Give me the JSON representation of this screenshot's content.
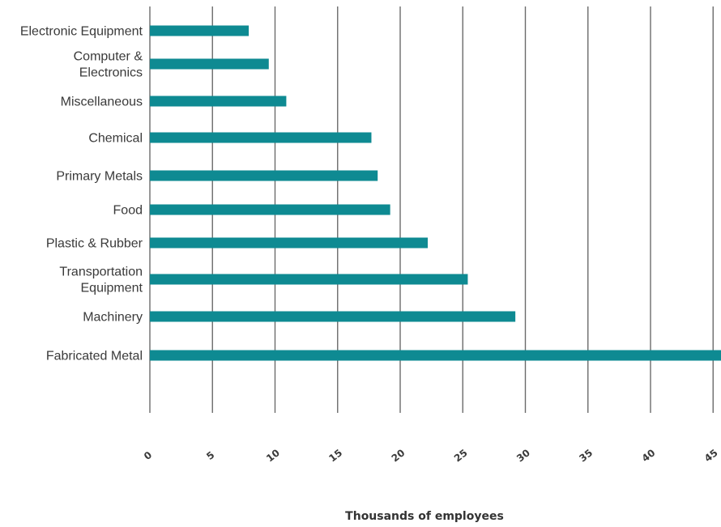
{
  "chart_data": {
    "type": "bar",
    "orientation": "horizontal",
    "categories": [
      "Electronic Equipment",
      "Computer & Electronics",
      "Miscellaneous",
      "Chemical",
      "Primary Metals",
      "Food",
      "Plastic & Rubber",
      "Transportation Equipment",
      "Machinery",
      "Fabricated Metal"
    ],
    "category_label_lines": [
      [
        "Electronic Equipment"
      ],
      [
        "Computer &",
        "Electronics"
      ],
      [
        "Miscellaneous"
      ],
      [
        "Chemical"
      ],
      [
        "Primary Metals"
      ],
      [
        "Food"
      ],
      [
        "Plastic & Rubber"
      ],
      [
        "Transportation",
        "Equipment"
      ],
      [
        "Machinery"
      ],
      [
        "Fabricated Metal"
      ]
    ],
    "values": [
      7.9,
      9.5,
      10.9,
      17.7,
      18.2,
      19.2,
      22.2,
      25.4,
      29.2,
      46.0
    ],
    "xlabel": "Thousands of employees",
    "xlim": [
      0,
      45.5
    ],
    "xticks": [
      0,
      5,
      10,
      15,
      20,
      25,
      30,
      35,
      40,
      45
    ],
    "grid": "vertical",
    "legend": "none",
    "bar_color": "#0e8a92",
    "grid_color": "#6b6b6b"
  }
}
